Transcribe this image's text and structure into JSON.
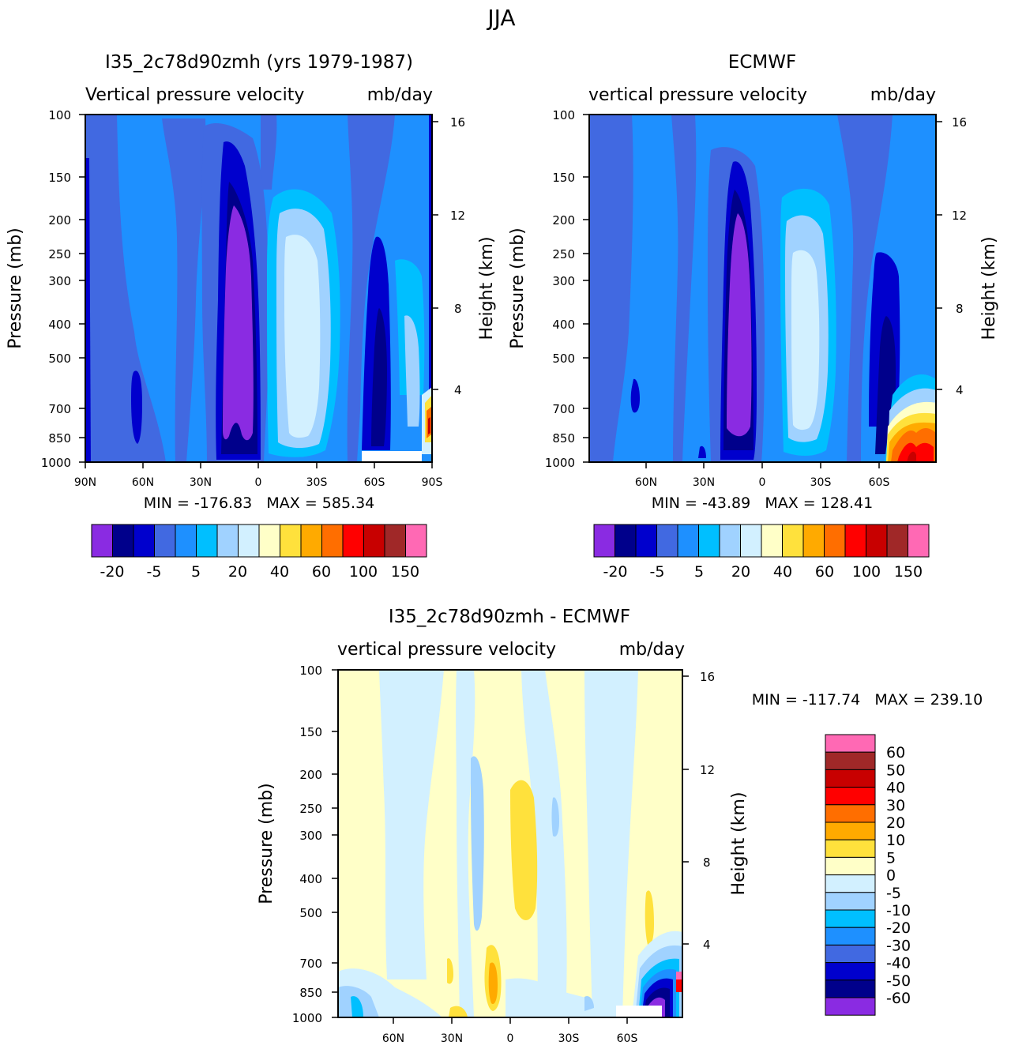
{
  "figure_title": "JJA",
  "axis_common": {
    "ylabel_left": "Pressure (mb)",
    "ylabel_right": "Height (km)",
    "pressure_ticks": [
      "100",
      "150",
      "200",
      "250",
      "300",
      "400",
      "500",
      "700",
      "850",
      "1000"
    ],
    "height_ticks": [
      "16",
      "12",
      "8",
      "4"
    ]
  },
  "panels": [
    {
      "title": "I35_2c78d90zmh (yrs 1979-1987)",
      "subtitle_var": "Vertical pressure velocity",
      "subtitle_units": "mb/day",
      "x_ticks": [
        "90N",
        "60N",
        "30N",
        "0",
        "30S",
        "60S",
        "90S"
      ],
      "stats": "MIN = -176.83   MAX = 585.34"
    },
    {
      "title": "ECMWF",
      "subtitle_var": "vertical pressure velocity",
      "subtitle_units": "mb/day",
      "x_ticks": [
        "60N",
        "30N",
        "0",
        "30S",
        "60S"
      ],
      "stats": "MIN = -43.89   MAX = 128.41"
    },
    {
      "title": "I35_2c78d90zmh - ECMWF",
      "subtitle_var": "vertical pressure velocity",
      "subtitle_units": "mb/day",
      "x_ticks": [
        "60N",
        "30N",
        "0",
        "30S",
        "60S"
      ],
      "stats": "MIN = -117.74   MAX = 239.10"
    }
  ],
  "colorbar_main": {
    "colors": [
      "#8a2be2",
      "#00008b",
      "#0000cd",
      "#4169e1",
      "#1e90ff",
      "#00bfff",
      "#a0d2ff",
      "#d2f0ff",
      "#ffffc8",
      "#ffe13c",
      "#ffaa00",
      "#ff6e00",
      "#ff0000",
      "#c80000",
      "#a02828",
      "#ff69b4"
    ],
    "labels": [
      "-20",
      "-5",
      "5",
      "20",
      "40",
      "60",
      "100",
      "150"
    ]
  },
  "colorbar_diff": {
    "colors": [
      "#ff69b4",
      "#a02828",
      "#c80000",
      "#ff0000",
      "#ff6e00",
      "#ffaa00",
      "#ffe13c",
      "#ffffc8",
      "#d2f0ff",
      "#a0d2ff",
      "#00bfff",
      "#1e90ff",
      "#4169e1",
      "#0000cd",
      "#00008b",
      "#8a2be2"
    ],
    "labels": [
      "60",
      "50",
      "40",
      "30",
      "20",
      "10",
      "5",
      "0",
      "-5",
      "-10",
      "-20",
      "-30",
      "-40",
      "-50",
      "-60"
    ]
  },
  "chart_data": [
    {
      "type": "heatmap",
      "title": "I35_2c78d90zmh (yrs 1979-1987)",
      "subtitle": "Vertical pressure velocity  mb/day",
      "xlabel": "",
      "ylabel": "Pressure (mb)",
      "y2label": "Height (km)",
      "x_ticks": [
        "90N",
        "60N",
        "30N",
        "0",
        "30S",
        "60S",
        "90S"
      ],
      "xlim": [
        90,
        -90
      ],
      "y_ticks": [
        100,
        150,
        200,
        250,
        300,
        400,
        500,
        700,
        850,
        1000
      ],
      "ylim": [
        1000,
        100
      ],
      "y_scale": "log",
      "contour_levels": [
        -20,
        -5,
        5,
        20,
        40,
        60,
        100,
        150
      ],
      "min": -176.83,
      "max": 585.34
    },
    {
      "type": "heatmap",
      "title": "ECMWF",
      "subtitle": "vertical pressure velocity  mb/day",
      "xlabel": "",
      "ylabel": "Pressure (mb)",
      "y2label": "Height (km)",
      "x_ticks": [
        "60N",
        "30N",
        "0",
        "30S",
        "60S"
      ],
      "y_ticks": [
        100,
        150,
        200,
        250,
        300,
        400,
        500,
        700,
        850,
        1000
      ],
      "ylim": [
        1000,
        100
      ],
      "y_scale": "log",
      "contour_levels": [
        -20,
        -5,
        5,
        20,
        40,
        60,
        100,
        150
      ],
      "min": -43.89,
      "max": 128.41
    },
    {
      "type": "heatmap",
      "title": "I35_2c78d90zmh - ECMWF",
      "subtitle": "vertical pressure velocity  mb/day",
      "xlabel": "",
      "ylabel": "Pressure (mb)",
      "y2label": "Height (km)",
      "x_ticks": [
        "60N",
        "30N",
        "0",
        "30S",
        "60S"
      ],
      "y_ticks": [
        100,
        150,
        200,
        250,
        300,
        400,
        500,
        700,
        850,
        1000
      ],
      "ylim": [
        1000,
        100
      ],
      "y_scale": "log",
      "contour_levels": [
        -60,
        -50,
        -40,
        -30,
        -20,
        -10,
        -5,
        0,
        5,
        10,
        20,
        30,
        40,
        50,
        60
      ],
      "min": -117.74,
      "max": 239.1
    }
  ]
}
